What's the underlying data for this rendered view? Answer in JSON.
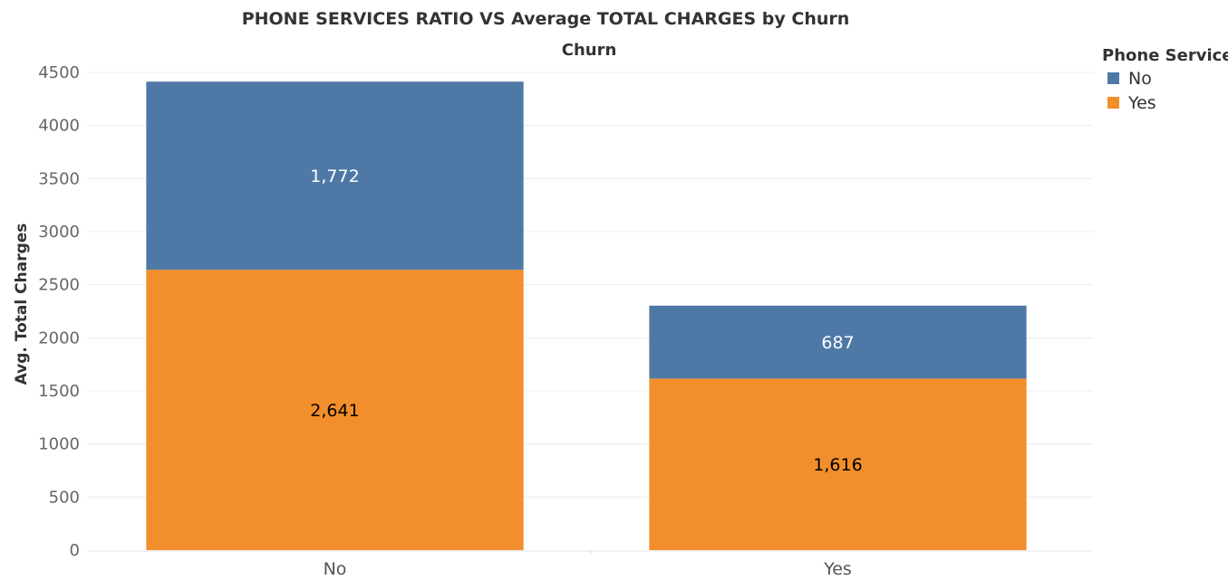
{
  "chart_data": {
    "type": "bar",
    "stacked": true,
    "title": "PHONE SERVICES RATIO VS Average TOTAL CHARGES by Churn",
    "column_header": "Churn",
    "ylabel": "Avg. Total Charges",
    "xlabel": "",
    "categories": [
      "No",
      "Yes"
    ],
    "ylim": [
      0,
      4500
    ],
    "yticks": [
      0,
      500,
      1000,
      1500,
      2000,
      2500,
      3000,
      3500,
      4000,
      4500
    ],
    "grid": true,
    "legend": {
      "title": "Phone Service",
      "placement": "top-right",
      "entries": [
        "No",
        "Yes"
      ]
    },
    "series": [
      {
        "name": "Yes",
        "values": [
          2641,
          1616
        ],
        "labels": [
          "2,641",
          "1,616"
        ],
        "color": "#f28e2b",
        "label_color": "#000000"
      },
      {
        "name": "No",
        "values": [
          1772,
          687
        ],
        "labels": [
          "1,772",
          "687"
        ],
        "color": "#4e79a7",
        "label_color": "#ffffff"
      }
    ]
  }
}
